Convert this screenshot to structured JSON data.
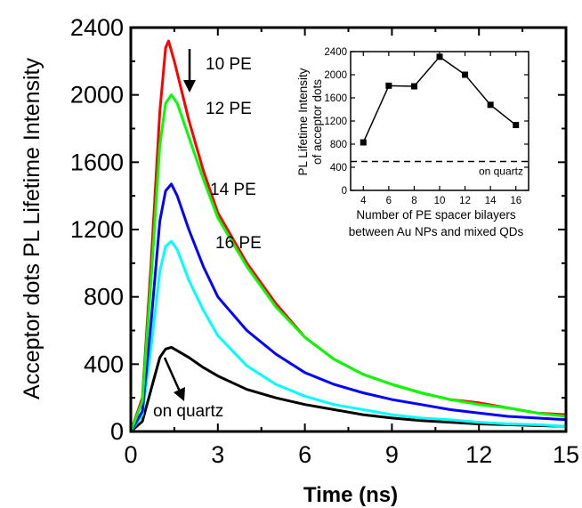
{
  "chart_data": [
    {
      "type": "line",
      "title": "",
      "xlabel": "Time (ns)",
      "ylabel": "Acceptor dots PL Lifetime Intensity",
      "xlim": [
        0,
        15
      ],
      "ylim": [
        0,
        2400
      ],
      "xticks": [
        "0",
        "3",
        "6",
        "9",
        "12",
        "15"
      ],
      "yticks": [
        "0",
        "400",
        "800",
        "1200",
        "1600",
        "2000",
        "2400"
      ],
      "legend": "none",
      "grid": false,
      "series": [
        {
          "name": "10 PE",
          "color": "#ff0000",
          "x": [
            0,
            0.4,
            0.7,
            1.0,
            1.2,
            1.3,
            1.5,
            2.0,
            2.5,
            3.0,
            4.0,
            5.0,
            6.0,
            7.0,
            8.0,
            9.0,
            10.0,
            11.0,
            12.0,
            13.0,
            14.0,
            15.0
          ],
          "y": [
            0,
            200,
            1000,
            1900,
            2280,
            2320,
            2200,
            1850,
            1550,
            1300,
            1000,
            760,
            560,
            430,
            340,
            280,
            230,
            190,
            170,
            140,
            110,
            100
          ]
        },
        {
          "name": "12 PE",
          "color": "#00ff00",
          "x": [
            0,
            0.4,
            0.7,
            1.0,
            1.2,
            1.4,
            1.6,
            2.0,
            2.5,
            3.0,
            4.0,
            5.0,
            6.0,
            7.0,
            8.0,
            9.0,
            10.0,
            11.0,
            12.0,
            13.0,
            14.0,
            15.0
          ],
          "y": [
            0,
            180,
            900,
            1700,
            1950,
            2000,
            1950,
            1750,
            1500,
            1270,
            980,
            740,
            560,
            430,
            340,
            280,
            230,
            190,
            160,
            140,
            110,
            90
          ]
        },
        {
          "name": "14 PE",
          "color": "#0000ff",
          "x": [
            0,
            0.4,
            0.7,
            1.0,
            1.2,
            1.4,
            1.6,
            2.0,
            2.5,
            3.0,
            4.0,
            5.0,
            6.0,
            7.0,
            8.0,
            9.0,
            10.0,
            11.0,
            12.0,
            13.0,
            14.0,
            15.0
          ],
          "y": [
            0,
            120,
            650,
            1250,
            1430,
            1470,
            1400,
            1200,
            980,
            800,
            600,
            460,
            350,
            280,
            230,
            190,
            160,
            130,
            110,
            90,
            80,
            70
          ]
        },
        {
          "name": "16 PE",
          "color": "#00ffff",
          "x": [
            0,
            0.4,
            0.7,
            1.0,
            1.2,
            1.4,
            1.6,
            2.0,
            2.5,
            3.0,
            4.0,
            5.0,
            6.0,
            7.0,
            8.0,
            9.0,
            10.0,
            11.0,
            12.0,
            13.0,
            14.0,
            15.0
          ],
          "y": [
            0,
            100,
            500,
            950,
            1100,
            1130,
            1080,
            900,
            720,
            570,
            390,
            280,
            210,
            160,
            130,
            100,
            80,
            70,
            55,
            45,
            40,
            30
          ]
        },
        {
          "name": "on quartz",
          "color": "#000000",
          "x": [
            0,
            0.4,
            0.7,
            1.0,
            1.2,
            1.4,
            1.6,
            2.0,
            2.5,
            3.0,
            4.0,
            5.0,
            6.0,
            7.0,
            8.0,
            9.0,
            10.0,
            11.0,
            12.0,
            13.0,
            14.0,
            15.0
          ],
          "y": [
            0,
            60,
            250,
            440,
            490,
            500,
            480,
            440,
            380,
            330,
            250,
            200,
            160,
            130,
            100,
            80,
            65,
            55,
            45,
            40,
            35,
            30
          ]
        }
      ],
      "annotations": [
        "10 PE",
        "12 PE",
        "14 PE",
        "16 PE",
        "on quartz"
      ]
    },
    {
      "type": "line",
      "title": "",
      "xlabel": "Number of PE spacer bilayers between Au NPs and mixed QDs",
      "xlabel_lines": [
        "Number of PE spacer bilayers",
        "between Au NPs and mixed QDs"
      ],
      "ylabel": "PL Lifetime Intensity of acceptor dots",
      "ylabel_lines": [
        "PL Lifetime Intensity",
        "of acceptor dots"
      ],
      "xlim": [
        3,
        17
      ],
      "ylim": [
        0,
        2400
      ],
      "xticks": [
        "4",
        "6",
        "8",
        "10",
        "12",
        "14",
        "16"
      ],
      "yticks": [
        "0",
        "400",
        "800",
        "1200",
        "1600",
        "2000",
        "2400"
      ],
      "series": [
        {
          "name": "",
          "color": "#000000",
          "marker": "square",
          "x": [
            4,
            6,
            8,
            10,
            12,
            14,
            16
          ],
          "y": [
            830,
            1810,
            1800,
            2310,
            2000,
            1480,
            1130
          ]
        }
      ],
      "reference_line": {
        "label": "on quartz",
        "y": 500,
        "style": "dashed"
      }
    }
  ]
}
